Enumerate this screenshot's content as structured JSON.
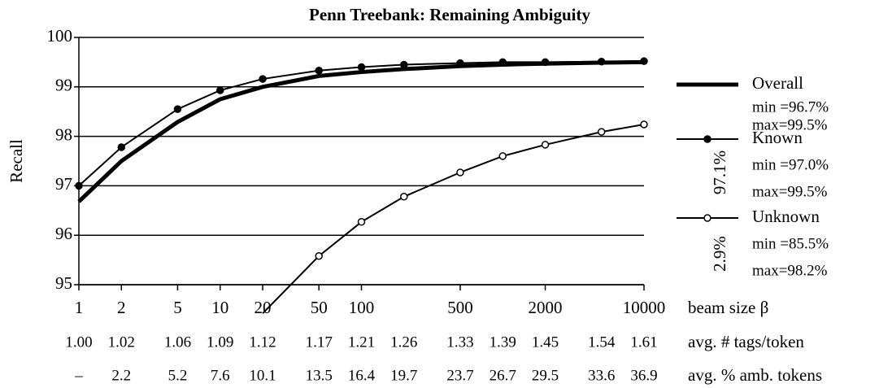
{
  "chart_data": {
    "type": "line",
    "title": "Penn Treebank: Remaining Ambiguity",
    "ylabel": "Recall",
    "xlabel": "beam size β",
    "x": [
      1,
      2,
      5,
      10,
      20,
      50,
      100,
      200,
      500,
      1000,
      2000,
      5000,
      10000
    ],
    "xlim": [
      1,
      10000
    ],
    "xscale": "log",
    "xticks": [
      1,
      2,
      5,
      10,
      20,
      50,
      100,
      500,
      2000,
      10000
    ],
    "ylim": [
      95,
      100
    ],
    "yticks": [
      95,
      96,
      97,
      98,
      99,
      100
    ],
    "grid": true,
    "legend": "right",
    "series": [
      {
        "name": "Overall",
        "color": "#000000",
        "line_width": 5,
        "marker": "none",
        "notes": [
          "min =96.7%",
          "max=99.5%"
        ],
        "values": [
          96.68,
          97.5,
          98.29,
          98.75,
          99.0,
          99.22,
          99.3,
          99.36,
          99.42,
          99.45,
          99.47,
          99.49,
          99.5
        ]
      },
      {
        "name": "Known",
        "color": "#000000",
        "line_width": 2,
        "marker": "filled",
        "notes": [
          "min =97.0%",
          "max=99.5%"
        ],
        "values": [
          97.0,
          97.78,
          98.55,
          98.93,
          99.16,
          99.33,
          99.4,
          99.45,
          99.48,
          99.5,
          99.5,
          99.51,
          99.52
        ]
      },
      {
        "name": "Unknown",
        "color": "#000000",
        "line_width": 2,
        "marker": "open",
        "notes": [
          "min =85.5%",
          "max=98.2%"
        ],
        "values": [
          null,
          null,
          null,
          null,
          94.42,
          95.58,
          96.27,
          96.78,
          97.27,
          97.6,
          97.83,
          98.09,
          98.24
        ]
      }
    ],
    "annotations": [
      "97.1%",
      "2.9%"
    ],
    "rows": [
      {
        "label": "avg. # tags/token",
        "values": [
          "1.00",
          "1.02",
          "1.06",
          "1.09",
          "1.12",
          "1.17",
          "1.21",
          "1.26",
          "1.33",
          "1.39",
          "1.45",
          "1.54",
          "1.61"
        ]
      },
      {
        "label": "avg. % amb. tokens",
        "values": [
          "–",
          "2.2",
          "5.2",
          "7.6",
          "10.1",
          "13.5",
          "16.4",
          "19.7",
          "23.7",
          "26.7",
          "29.5",
          "33.6",
          "36.9"
        ]
      }
    ]
  }
}
